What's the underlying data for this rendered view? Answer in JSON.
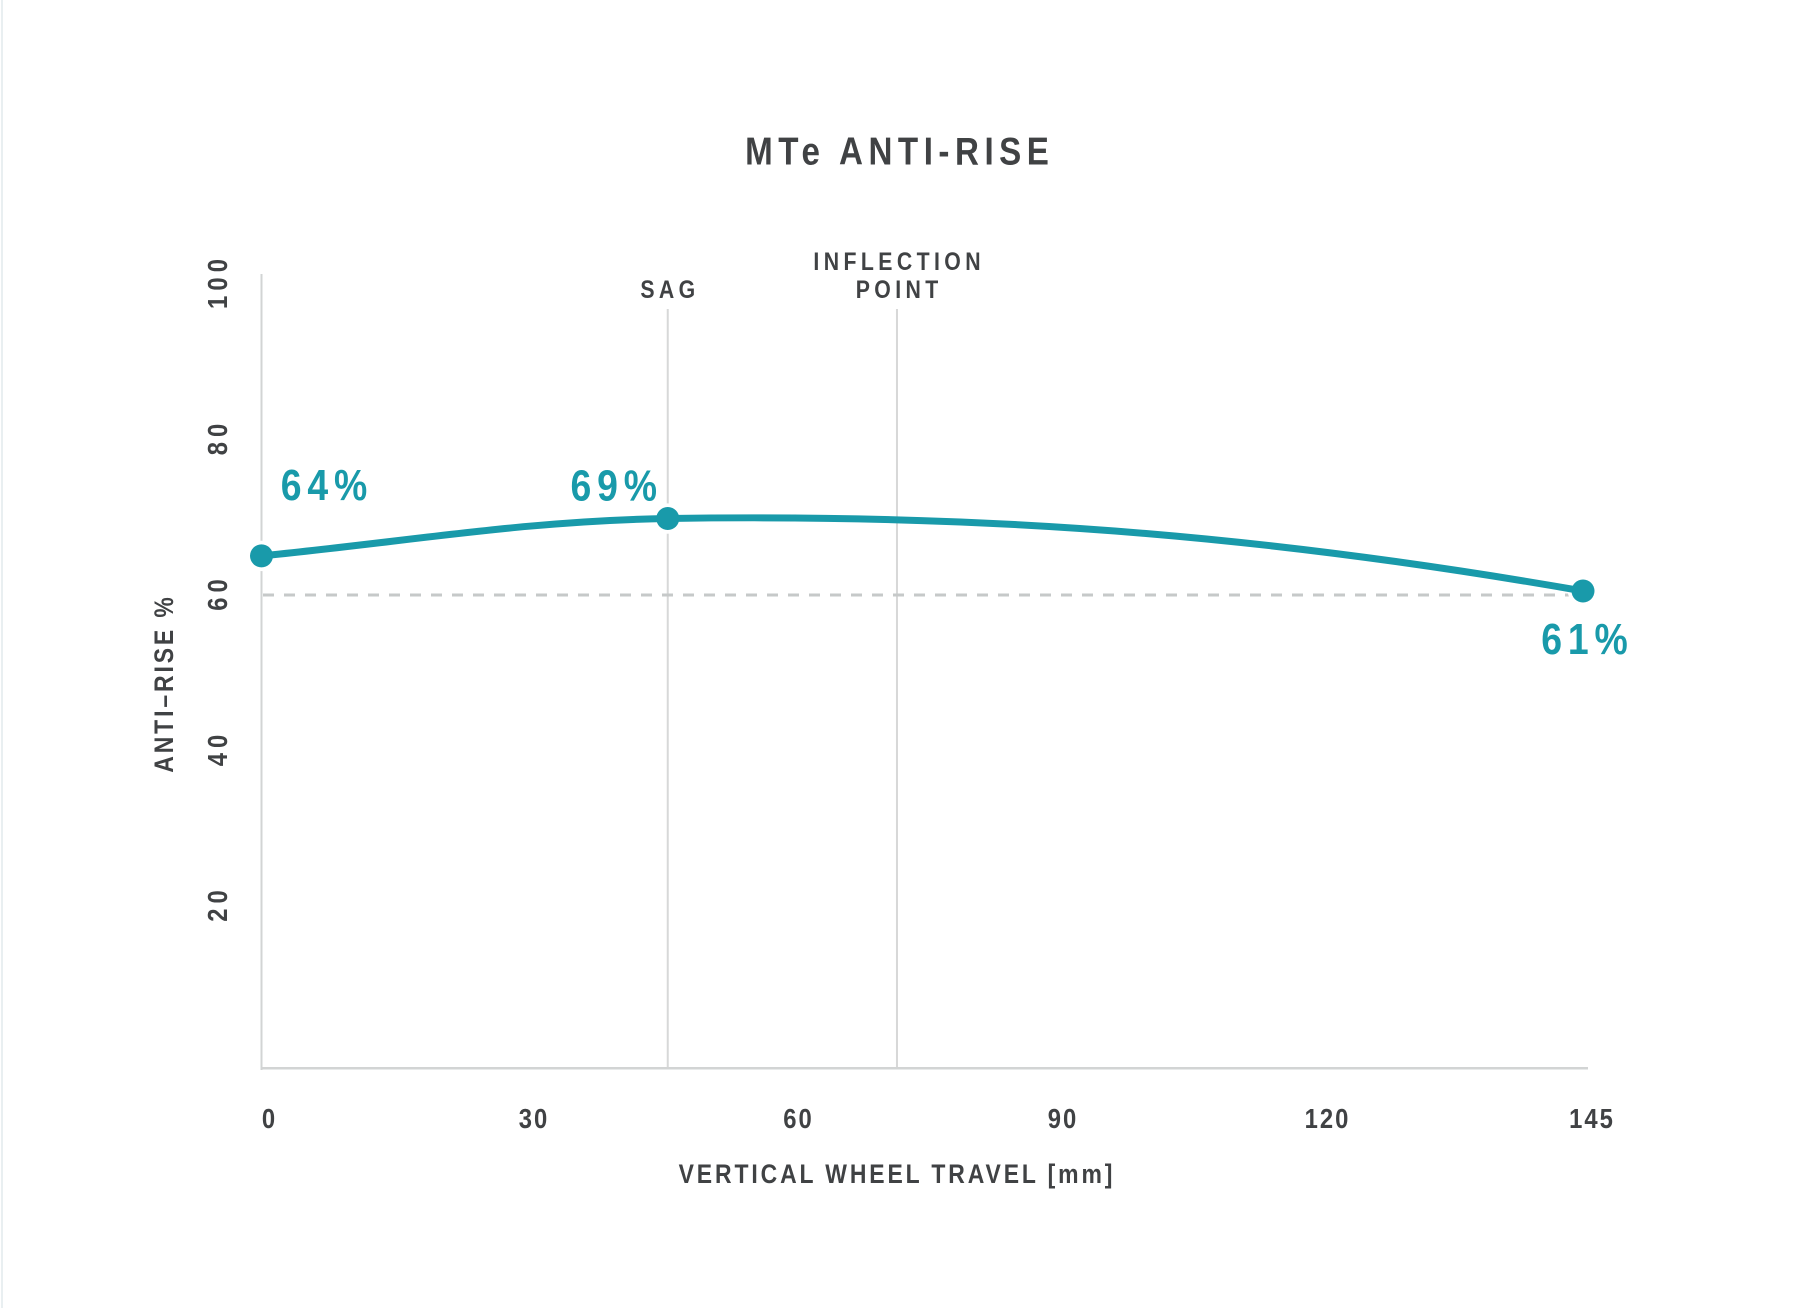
{
  "page": {
    "background": "#ffffff"
  },
  "chart_data": {
    "type": "line",
    "title": "MTe ANTI-RISE",
    "xlabel": "VERTICAL WHEEL TRAVEL [mm]",
    "ylabel": "ANTI–RISE %",
    "x_ticks": [
      0,
      30,
      60,
      90,
      120,
      145
    ],
    "y_ticks": [
      20,
      40,
      60,
      80,
      100
    ],
    "xlim": [
      0,
      145
    ],
    "ylim": [
      0,
      102
    ],
    "legend": "none",
    "grid": "vertical annotation lines only",
    "series": [
      {
        "name": "anti-rise",
        "color": "#199aaa",
        "points": [
          {
            "x": 0,
            "y": 64,
            "label": "64%",
            "label_position": "above-right"
          },
          {
            "x": 45,
            "y": 69,
            "label": "69%",
            "label_position": "above-left"
          },
          {
            "x": 145,
            "y": 61,
            "label": "61%",
            "label_position": "below"
          }
        ]
      }
    ],
    "annotations": {
      "vertical_lines": [
        {
          "x": 45,
          "label_lines": [
            "SAG"
          ]
        },
        {
          "x": 71,
          "label_lines": [
            "INFLECTION",
            "POINT"
          ]
        }
      ],
      "dashed_horizontal_line_y": 60
    },
    "colors": {
      "accent_teal": "#199aaa",
      "text_dark": "#404244",
      "axis_gray": "#d2d4d4",
      "grid_gray": "#d7d8d8",
      "dash_gray": "#c6c9c9"
    }
  }
}
